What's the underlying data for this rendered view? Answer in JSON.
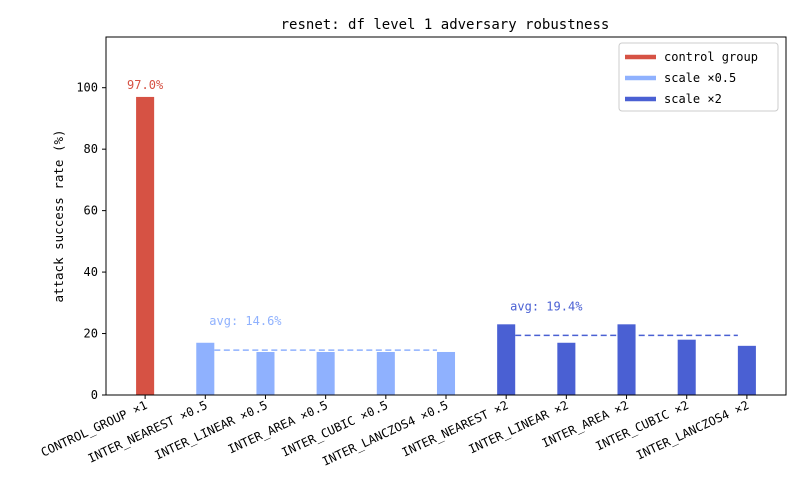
{
  "chart_data": {
    "type": "bar",
    "title": "resnet: df level 1 adversary robustness",
    "xlabel": "",
    "ylabel": "attack success rate (%)",
    "ylim": [
      0,
      116.5
    ],
    "yticks": [
      0,
      20,
      40,
      60,
      80,
      100
    ],
    "grid": false,
    "legend_position": "top-right",
    "categories": [
      "CONTROL_GROUP ×1",
      "INTER_NEAREST ×0.5",
      "INTER_LINEAR ×0.5",
      "INTER_AREA ×0.5",
      "INTER_CUBIC ×0.5",
      "INTER_LANCZOS4 ×0.5",
      "INTER_NEAREST ×2",
      "INTER_LINEAR ×2",
      "INTER_AREA ×2",
      "INTER_CUBIC ×2",
      "INTER_LANCZOS4 ×2"
    ],
    "values": [
      97.0,
      17,
      14,
      14,
      14,
      14,
      23,
      17,
      23,
      18,
      16
    ],
    "bar_groups": [
      0,
      1,
      1,
      1,
      1,
      1,
      2,
      2,
      2,
      2,
      2
    ],
    "groups": [
      {
        "name": "control group",
        "color": "#d65244"
      },
      {
        "name": "scale ×0.5",
        "color": "#8fb1fe"
      },
      {
        "name": "scale ×2",
        "color": "#4a60d3"
      }
    ],
    "annotations": [
      {
        "text": "97.0%",
        "bar": 0,
        "color": "#d65244"
      }
    ],
    "averages": [
      {
        "text": "avg: 14.6%",
        "value": 14.6,
        "from_bar": 1,
        "to_bar": 5,
        "color": "#8fb1fe"
      },
      {
        "text": "avg: 19.4%",
        "value": 19.4,
        "from_bar": 6,
        "to_bar": 10,
        "color": "#4a60d3"
      }
    ]
  }
}
